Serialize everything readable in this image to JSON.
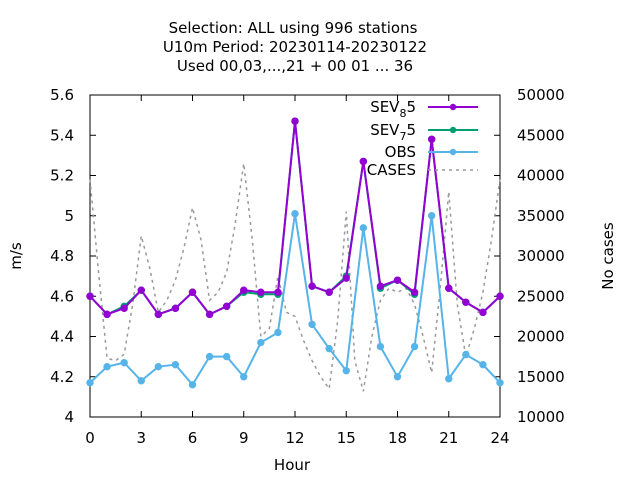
{
  "chart_data": {
    "type": "line",
    "title_lines": [
      "Selection: ALL using   996 stations",
      "U10m   Period: 20230114-20230122",
      "Used  00,03,...,21  + 00 01 ... 36"
    ],
    "xlabel": "Hour",
    "ylabel": "m/s",
    "y2label": "No cases",
    "xlim": [
      0,
      24
    ],
    "ylim": [
      4,
      5.6
    ],
    "y2lim": [
      10000,
      50000
    ],
    "x_ticks": [
      "0",
      "3",
      "6",
      "9",
      "12",
      "15",
      "18",
      "21",
      "24"
    ],
    "y_ticks": [
      "4",
      "4.2",
      "4.4",
      "4.6",
      "4.8",
      "5",
      "5.2",
      "5.4",
      "5.6"
    ],
    "y2_ticks": [
      "10000",
      "15000",
      "20000",
      "25000",
      "30000",
      "35000",
      "40000",
      "45000",
      "50000"
    ],
    "grid": false,
    "legend_position": "top-right",
    "x": [
      0,
      1,
      2,
      3,
      4,
      5,
      6,
      7,
      8,
      9,
      10,
      11,
      12,
      13,
      14,
      15,
      16,
      17,
      18,
      19,
      20,
      21,
      22,
      23,
      24
    ],
    "series": [
      {
        "name": "SEV_8 5",
        "legend_main": "SEV",
        "legend_sub": "8",
        "legend_tail": "5",
        "color": "#9400d3",
        "axis": "y",
        "marker": "circle",
        "values": [
          4.6,
          4.51,
          4.54,
          4.63,
          4.51,
          4.54,
          4.62,
          4.51,
          4.55,
          4.63,
          4.62,
          4.62,
          5.47,
          4.65,
          4.62,
          4.69,
          5.27,
          4.65,
          4.68,
          4.62,
          5.38,
          4.64,
          4.57,
          4.52,
          4.6
        ]
      },
      {
        "name": "SEV_7 5",
        "legend_main": "SEV",
        "legend_sub": "7",
        "legend_tail": "5",
        "color": "#009e73",
        "axis": "y",
        "marker": "circle",
        "values": [
          4.6,
          4.51,
          4.55,
          4.63,
          4.51,
          4.54,
          4.62,
          4.51,
          4.55,
          4.62,
          4.61,
          4.61,
          5.47,
          4.65,
          4.62,
          4.7,
          5.27,
          4.64,
          4.68,
          4.61,
          5.38,
          4.64,
          4.57,
          4.52,
          4.6
        ]
      },
      {
        "name": "OBS",
        "legend_main": "OBS",
        "legend_sub": "",
        "legend_tail": "",
        "color": "#56b4e9",
        "axis": "y",
        "marker": "circle",
        "values": [
          4.17,
          4.25,
          4.27,
          4.18,
          4.25,
          4.26,
          4.16,
          4.3,
          4.3,
          4.2,
          4.37,
          4.42,
          5.01,
          4.46,
          4.34,
          4.23,
          4.94,
          4.35,
          4.2,
          4.35,
          5.0,
          4.19,
          4.31,
          4.26,
          4.17
        ]
      },
      {
        "name": "CASES",
        "legend_main": "CASES",
        "legend_sub": "",
        "legend_tail": "",
        "color": "#999999",
        "axis": "y2",
        "dashed": true,
        "x": [
          0,
          0.5,
          1,
          1.5,
          2,
          2.5,
          3,
          3.5,
          4,
          4.5,
          5,
          5.5,
          6,
          6.5,
          7,
          7.5,
          8,
          8.5,
          9,
          9.5,
          10,
          10.5,
          11,
          11.5,
          12,
          12.5,
          13,
          13.5,
          14,
          14.5,
          15,
          15.5,
          16,
          16.5,
          17,
          17.5,
          18,
          18.5,
          19,
          19.5,
          20,
          20.5,
          21,
          21.5,
          22,
          22.5,
          23,
          23.5,
          24
        ],
        "values": [
          39500,
          28000,
          17300,
          17000,
          17800,
          24000,
          32500,
          28500,
          23000,
          24500,
          27000,
          31000,
          36000,
          32000,
          24500,
          25500,
          28000,
          34000,
          41500,
          32000,
          20000,
          21000,
          27500,
          23000,
          22500,
          19500,
          17000,
          15000,
          13500,
          22000,
          35500,
          17000,
          13200,
          20000,
          24500,
          26000,
          25500,
          26000,
          24000,
          20000,
          15500,
          26000,
          38000,
          24000,
          17500,
          21000,
          25500,
          32000,
          39500
        ]
      }
    ]
  }
}
